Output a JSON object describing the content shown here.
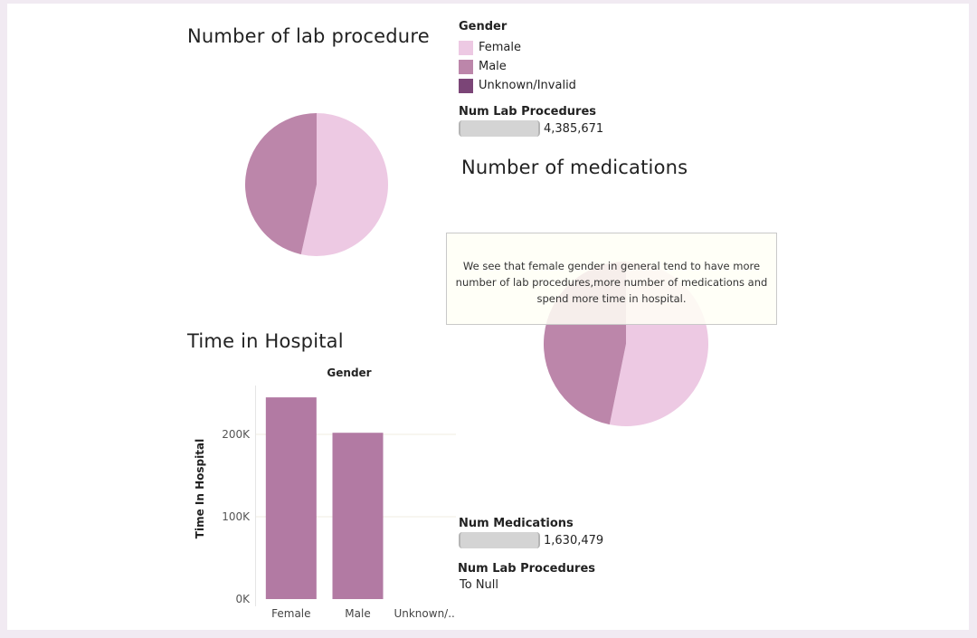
{
  "titles": {
    "lab": "Number of lab procedure",
    "medications": "Number of medications",
    "time": "Time in Hospital"
  },
  "legend": {
    "title": "Gender",
    "items": [
      {
        "label": "Female",
        "color": "#edc9e3"
      },
      {
        "label": "Male",
        "color": "#bc86aa"
      },
      {
        "label": "Unknown/Invalid",
        "color": "#7b4577"
      }
    ]
  },
  "lab_size": {
    "label": "Num Lab Procedures",
    "value": "4,385,671"
  },
  "med_size": {
    "label": "Num Medications",
    "value": "1,630,479"
  },
  "lab_filter": {
    "label": "Num Lab Procedures",
    "value": "To Null"
  },
  "tooltip": "We see that female gender in general tend to have more number of lab procedures,more number of medications and spend more time in hospital.",
  "chart_data": [
    {
      "type": "pie",
      "title": "Number of lab procedure",
      "categories": [
        "Female",
        "Male",
        "Unknown/Invalid"
      ],
      "values": [
        53.5,
        46.5,
        0
      ],
      "unit": "% of Num Lab Procedures (total 4,385,671)",
      "colors": [
        "#edc9e3",
        "#bc86aa",
        "#7b4577"
      ]
    },
    {
      "type": "pie",
      "title": "Number of medications",
      "categories": [
        "Female",
        "Male",
        "Unknown/Invalid"
      ],
      "values": [
        53.2,
        46.8,
        0
      ],
      "unit": "% of Num Medications (total 1,630,479)",
      "colors": [
        "#edc9e3",
        "#bc86aa",
        "#7b4577"
      ]
    },
    {
      "type": "bar",
      "title": "Time in Hospital",
      "xlabel": "Gender",
      "ylabel": "Time In Hospital",
      "categories": [
        "Female",
        "Male",
        "Unknown/.."
      ],
      "values": [
        245000,
        202000,
        0
      ],
      "ylim": [
        0,
        255000
      ],
      "yticks": [
        0,
        100000,
        200000
      ],
      "ytick_labels": [
        "0K",
        "100K",
        "200K"
      ],
      "color": "#b27aa3",
      "grid": true
    }
  ]
}
